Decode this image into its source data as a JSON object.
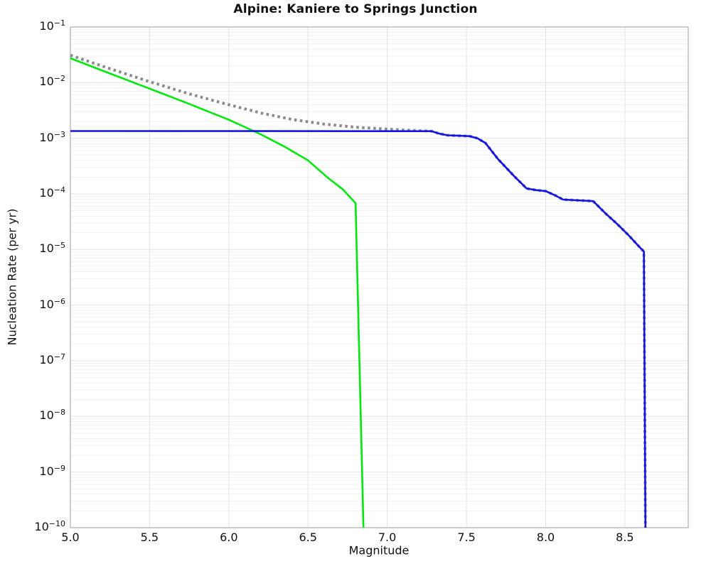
{
  "title": "Alpine: Kaniere to Springs Junction",
  "chart_data": {
    "type": "line",
    "title": "Alpine: Kaniere to Springs Junction",
    "xlabel": "Magnitude",
    "ylabel": "Nucleation Rate (per yr)",
    "xlim": [
      5.0,
      8.9
    ],
    "ylim": [
      1e-10,
      0.1
    ],
    "x_ticks": [
      5.0,
      5.5,
      6.0,
      6.5,
      7.0,
      7.5,
      8.0,
      8.5
    ],
    "x_tick_labels": [
      "5.0",
      "5.5",
      "6.0",
      "6.5",
      "7.0",
      "7.5",
      "8.0",
      "8.5"
    ],
    "y_tick_exponents": [
      -1,
      -2,
      -3,
      -4,
      -5,
      -6,
      -7,
      -8,
      -9,
      -10
    ],
    "grid": {
      "major_color": "#e3e3e3",
      "minor_color": "#f1f1f1",
      "frame_color": "#aeaeae",
      "background": "#ffffff"
    },
    "legend": "none",
    "series": [
      {
        "name": "gray-dotted-total-mfd",
        "color": "#8a8a8a",
        "style": "dotted",
        "width": 4,
        "dash": "3.5 4.5",
        "points": [
          [
            5.0,
            0.031
          ],
          [
            5.25,
            0.0178
          ],
          [
            5.5,
            0.0104
          ],
          [
            5.75,
            0.0063
          ],
          [
            6.0,
            0.004
          ],
          [
            6.2,
            0.00285
          ],
          [
            6.4,
            0.00218
          ],
          [
            6.6,
            0.0018
          ],
          [
            6.8,
            0.00158
          ],
          [
            7.0,
            0.00146
          ],
          [
            7.15,
            0.00139
          ],
          [
            7.28,
            0.00134
          ],
          [
            7.33,
            0.00121
          ],
          [
            7.38,
            0.00113
          ],
          [
            7.52,
            0.00109
          ],
          [
            7.57,
            0.001
          ],
          [
            7.62,
            0.00082
          ],
          [
            7.7,
            0.00042
          ],
          [
            7.8,
            0.00021
          ],
          [
            7.88,
            0.000125
          ],
          [
            7.94,
            0.000117
          ],
          [
            8.0,
            0.000112
          ],
          [
            8.06,
            9.4e-05
          ],
          [
            8.11,
            7.9e-05
          ],
          [
            8.3,
            7.4e-05
          ],
          [
            8.38,
            4.4e-05
          ],
          [
            8.45,
            2.9e-05
          ],
          [
            8.52,
            1.85e-05
          ],
          [
            8.6,
            1.05e-05
          ],
          [
            8.62,
            9.2e-06
          ],
          [
            8.63,
            1e-10
          ]
        ]
      },
      {
        "name": "green-target-gr-mfd",
        "color": "#00e70e",
        "style": "solid",
        "width": 2.6,
        "dash": "",
        "points": [
          [
            5.0,
            0.0274
          ],
          [
            5.25,
            0.0146
          ],
          [
            5.5,
            0.0078
          ],
          [
            5.75,
            0.00415
          ],
          [
            6.0,
            0.00215
          ],
          [
            6.2,
            0.00118
          ],
          [
            6.35,
            0.00071
          ],
          [
            6.5,
            0.0004
          ],
          [
            6.62,
            0.0002
          ],
          [
            6.72,
            0.00012
          ],
          [
            6.8,
            6.8e-05
          ],
          [
            6.85,
            1e-10
          ]
        ]
      },
      {
        "name": "blue-solution-mfd",
        "color": "#1414e6",
        "style": "solid",
        "width": 2.6,
        "dash": "",
        "points": [
          [
            5.0,
            0.00135
          ],
          [
            7.28,
            0.00134
          ],
          [
            7.33,
            0.00121
          ],
          [
            7.38,
            0.00113
          ],
          [
            7.52,
            0.00109
          ],
          [
            7.57,
            0.001
          ],
          [
            7.62,
            0.00082
          ],
          [
            7.7,
            0.00042
          ],
          [
            7.8,
            0.00021
          ],
          [
            7.88,
            0.000125
          ],
          [
            7.94,
            0.000117
          ],
          [
            8.0,
            0.000112
          ],
          [
            8.06,
            9.4e-05
          ],
          [
            8.11,
            7.9e-05
          ],
          [
            8.3,
            7.4e-05
          ],
          [
            8.38,
            4.4e-05
          ],
          [
            8.45,
            2.9e-05
          ],
          [
            8.52,
            1.85e-05
          ],
          [
            8.6,
            1.05e-05
          ],
          [
            8.62,
            9.2e-06
          ],
          [
            8.63,
            1e-10
          ]
        ]
      }
    ]
  }
}
